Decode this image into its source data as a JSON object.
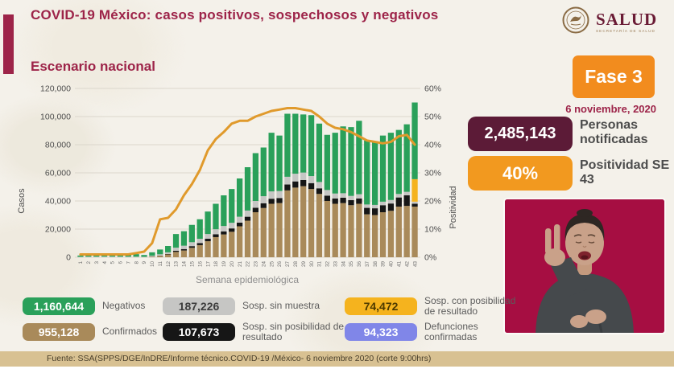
{
  "header": {
    "title": "COVID-19 México: casos positivos, sospechosos y negativos",
    "section_title": "Escenario nacional",
    "logo": {
      "name": "SALUD",
      "subtitle": "SECRETARÍA DE SALUD"
    }
  },
  "right_panel": {
    "phase_badge": "Fase 3",
    "date": "6 noviembre, 2020",
    "notified": {
      "value": "2,485,143",
      "label": "Personas notificadas"
    },
    "positivity": {
      "value": "40%",
      "label": "Positividad SE 43"
    }
  },
  "colors": {
    "accent_guinda": "#9d2449",
    "orange": "#f28c1e",
    "dark_maroon_badge": "#5c1b37",
    "video_background": "#a60e42",
    "footer_bar": "#d8c192"
  },
  "chart_data": {
    "type": "bar",
    "subtype": "stacked-bars-with-line",
    "title": "Escenario nacional",
    "xlabel": "Semana epidemiológica",
    "ylabel_left": "Casos",
    "ylabel_right": "Positividad",
    "ylim_left": [
      0,
      120000
    ],
    "ylim_right_pct": [
      0,
      60
    ],
    "yticks_left": [
      0,
      20000,
      40000,
      60000,
      80000,
      100000,
      120000
    ],
    "yticks_right_pct": [
      0,
      10,
      20,
      30,
      40,
      50,
      60
    ],
    "grid": true,
    "categories": [
      "1",
      "2",
      "3",
      "4",
      "5",
      "6",
      "7",
      "8",
      "9",
      "10",
      "11",
      "12",
      "13",
      "14",
      "15",
      "16",
      "17",
      "18",
      "19",
      "20",
      "21",
      "22",
      "23",
      "24",
      "25",
      "26",
      "27",
      "28",
      "29",
      "30",
      "31",
      "32",
      "33",
      "34",
      "35",
      "36",
      "37",
      "38",
      "39",
      "40",
      "41",
      "42",
      "43"
    ],
    "series": [
      {
        "name": "Confirmados",
        "color": "#a98a5a",
        "values": [
          0,
          0,
          0,
          0,
          0,
          0,
          0,
          0,
          0,
          400,
          1000,
          2000,
          3800,
          4800,
          6700,
          8600,
          11400,
          14300,
          16200,
          18100,
          22000,
          26000,
          32000,
          35000,
          38000,
          38500,
          47500,
          49500,
          50500,
          48500,
          45000,
          40000,
          38000,
          38500,
          37000,
          38000,
          30500,
          30000,
          32000,
          33000,
          36000,
          36500,
          36000
        ]
      },
      {
        "name": "Sosp. sin posibilidad de resultado",
        "color": "#161616",
        "values": [
          0,
          0,
          0,
          0,
          0,
          0,
          0,
          0,
          0,
          100,
          200,
          300,
          800,
          1000,
          1200,
          1500,
          1800,
          2000,
          2200,
          2400,
          2600,
          2800,
          3200,
          3400,
          3600,
          3600,
          4200,
          4400,
          4400,
          4200,
          4000,
          3800,
          3800,
          3800,
          3600,
          3800,
          4600,
          4800,
          5000,
          5200,
          6500,
          7500,
          2000
        ]
      },
      {
        "name": "Sosp. sin muestra",
        "color": "#c6c6c4",
        "values": [
          300,
          400,
          400,
          450,
          450,
          420,
          400,
          380,
          300,
          600,
          900,
          1200,
          2200,
          2400,
          2800,
          3000,
          3300,
          3600,
          3800,
          4000,
          4200,
          4400,
          4800,
          5000,
          5200,
          5000,
          5500,
          5500,
          5300,
          5000,
          4500,
          4000,
          3500,
          3200,
          3000,
          3000,
          2400,
          2400,
          2500,
          2500,
          2500,
          2500,
          1500
        ]
      },
      {
        "name": "Sosp. con posibilidad de resultado",
        "color": "#f5b31e",
        "values": [
          0,
          0,
          0,
          0,
          0,
          0,
          0,
          0,
          0,
          0,
          0,
          0,
          0,
          0,
          0,
          0,
          0,
          0,
          0,
          0,
          0,
          0,
          0,
          0,
          0,
          0,
          0,
          0,
          0,
          0,
          0,
          0,
          0,
          0,
          0,
          0,
          0,
          0,
          0,
          0,
          0,
          0,
          16000
        ]
      },
      {
        "name": "Negativos",
        "color": "#2aa05a",
        "values": [
          900,
          1800,
          2000,
          2150,
          2150,
          2080,
          2000,
          1820,
          1300,
          2400,
          3400,
          4500,
          9700,
          10300,
          12300,
          13900,
          16000,
          18100,
          21800,
          24000,
          27200,
          30800,
          34000,
          34600,
          41700,
          39400,
          44800,
          42600,
          41300,
          43300,
          41500,
          39200,
          43200,
          47500,
          48900,
          52200,
          45500,
          45300,
          47000,
          47800,
          45500,
          48000,
          54500
        ]
      }
    ],
    "line": {
      "name": "Positividad",
      "color": "#e09a2c",
      "values_pct": [
        1,
        1,
        1,
        1,
        1,
        1,
        1,
        1.5,
        2,
        5,
        13.5,
        14,
        17,
        22,
        26,
        31,
        38,
        42,
        44.5,
        47.5,
        48.5,
        48.5,
        50,
        51,
        52,
        52.5,
        53,
        53,
        52.5,
        52,
        50,
        47.5,
        46,
        45.5,
        44.5,
        43,
        41.5,
        41,
        40.5,
        41,
        43,
        43.5,
        40
      ]
    },
    "legend_position": "bottom"
  },
  "legend": {
    "items": [
      {
        "value": "1,160,644",
        "label": "Negativos",
        "color": "#2aa05a",
        "text_color": "#ffffff"
      },
      {
        "value": "187,226",
        "label": "Sosp. sin muestra",
        "color": "#c6c6c4",
        "text_color": "#3c3c3c"
      },
      {
        "value": "74,472",
        "label": "Sosp. con posibilidad de resultado",
        "color": "#f5b31e",
        "text_color": "#4d3a00"
      },
      {
        "value": "955,128",
        "label": "Confirmados",
        "color": "#a98a5a",
        "text_color": "#ffffff"
      },
      {
        "value": "107,673",
        "label": "Sosp. sin posibilidad de resultado",
        "color": "#161616",
        "text_color": "#ffffff"
      },
      {
        "value": "94,323",
        "label": "Defunciones confirmadas",
        "color": "#8086e8",
        "text_color": "#ffffff"
      }
    ]
  },
  "footer": {
    "source": "Fuente: SSA(SPPS/DGE/InDRE/Informe técnico.COVID-19 /México- 6 noviembre 2020 (corte 9:00hrs)"
  }
}
